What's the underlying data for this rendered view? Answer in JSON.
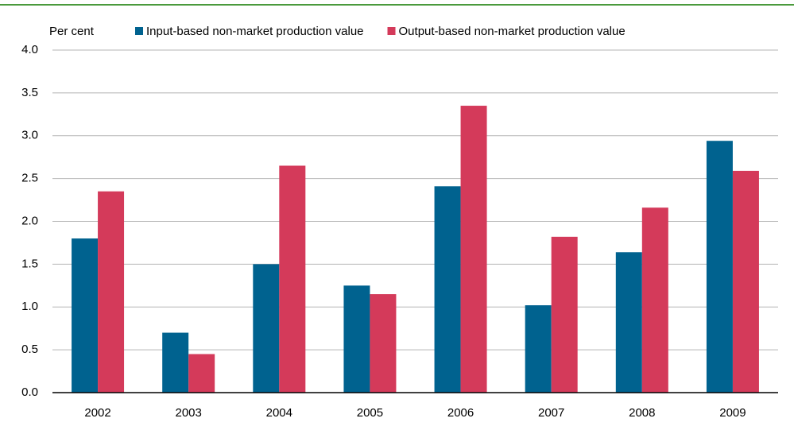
{
  "chart_data": {
    "type": "bar",
    "y_label": "Per cent",
    "categories": [
      "2002",
      "2003",
      "2004",
      "2005",
      "2006",
      "2007",
      "2008",
      "2009"
    ],
    "series": [
      {
        "name": "Input-based non-market production value",
        "color": "#00628f",
        "values": [
          1.8,
          0.7,
          1.5,
          1.25,
          2.41,
          1.02,
          1.64,
          2.94
        ]
      },
      {
        "name": "Output-based non-market production value",
        "color": "#d43a5a",
        "values": [
          2.35,
          0.45,
          2.65,
          1.15,
          3.35,
          1.82,
          2.16,
          2.59
        ]
      }
    ],
    "ylim": [
      0,
      4
    ],
    "yticks": [
      {
        "value": 0,
        "label": "0.0"
      },
      {
        "value": 0.5,
        "label": "0.5"
      },
      {
        "value": 1,
        "label": "1.0"
      },
      {
        "value": 1.5,
        "label": "1.5"
      },
      {
        "value": 2,
        "label": "2.0"
      },
      {
        "value": 2.5,
        "label": "2.5"
      },
      {
        "value": 3,
        "label": "3.0"
      },
      {
        "value": 3.5,
        "label": "3.5"
      },
      {
        "value": 4,
        "label": "4.0"
      }
    ],
    "grid": true
  }
}
